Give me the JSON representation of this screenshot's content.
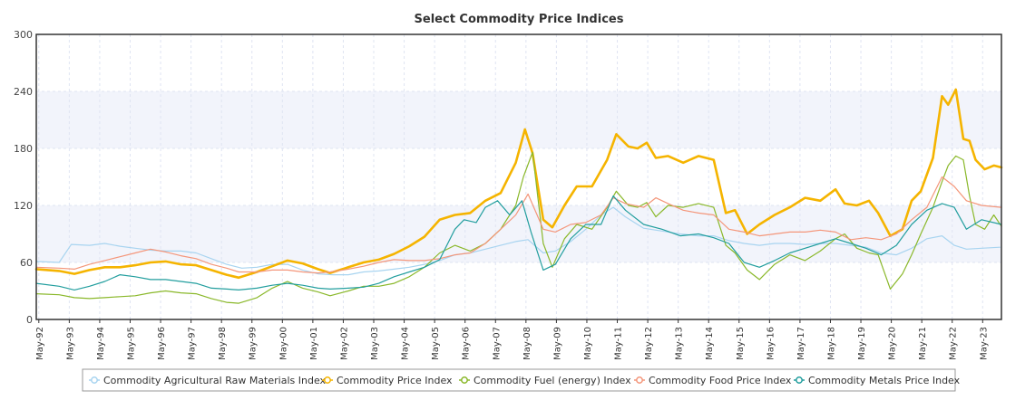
{
  "chart_data": {
    "type": "line",
    "title": "Select Commodity Price Indices",
    "ylim": [
      0,
      300
    ],
    "yticks": [
      "0",
      "60",
      "120",
      "180",
      "240",
      "300"
    ],
    "x_tick_labels": [
      "May-92",
      "May-93",
      "May-94",
      "May-95",
      "May-96",
      "May-97",
      "May-98",
      "May-99",
      "May-00",
      "May-01",
      "May-02",
      "May-03",
      "May-04",
      "May-05",
      "May-06",
      "May-07",
      "May-08",
      "May-09",
      "May-10",
      "May-11",
      "May-12",
      "May-13",
      "May-14",
      "May-15",
      "May-16",
      "May-17",
      "May-18",
      "May-19",
      "May-20",
      "May-21",
      "May-22",
      "May-23"
    ],
    "x_range": [
      1992.25,
      2023.95
    ],
    "grid": true,
    "bands": [
      [
        60,
        120
      ],
      [
        180,
        240
      ]
    ],
    "legend_position": "bottom",
    "series": [
      {
        "name": "Commodity Agricultural Raw Materials Index",
        "color": "#a8d4f0",
        "stroke_width": 1.2,
        "x": [
          1992.25,
          1993.0,
          1993.4,
          1994.0,
          1994.5,
          1995.0,
          1995.5,
          1996.0,
          1996.5,
          1997.0,
          1997.5,
          1998.0,
          1998.5,
          1999.0,
          1999.5,
          2000.0,
          2000.5,
          2001.0,
          2001.5,
          2002.0,
          2002.5,
          2003.0,
          2003.5,
          2004.0,
          2004.5,
          2005.0,
          2005.5,
          2006.0,
          2006.5,
          2007.0,
          2007.5,
          2008.0,
          2008.4,
          2008.9,
          2009.3,
          2009.8,
          2010.3,
          2010.8,
          2011.2,
          2011.6,
          2012.2,
          2012.8,
          2013.4,
          2014.0,
          2014.5,
          2015.0,
          2015.5,
          2016.0,
          2016.5,
          2017.0,
          2017.5,
          2018.0,
          2018.5,
          2019.0,
          2019.5,
          2020.0,
          2020.5,
          2021.0,
          2021.5,
          2022.0,
          2022.4,
          2022.8,
          2023.3,
          2023.9
        ],
        "values": [
          61,
          60,
          79,
          78,
          80,
          77,
          75,
          73,
          72,
          72,
          70,
          64,
          58,
          54,
          55,
          58,
          58,
          52,
          48,
          47,
          47,
          50,
          51,
          53,
          55,
          58,
          62,
          68,
          70,
          74,
          78,
          82,
          84,
          70,
          72,
          82,
          95,
          110,
          118,
          108,
          96,
          93,
          90,
          88,
          88,
          83,
          80,
          78,
          80,
          80,
          79,
          80,
          80,
          78,
          76,
          70,
          68,
          75,
          85,
          88,
          78,
          74,
          75,
          76
        ]
      },
      {
        "name": "Commodity Price Index",
        "color": "#f5b400",
        "stroke_width": 2.6,
        "x": [
          1992.25,
          1993.0,
          1993.5,
          1994.0,
          1994.5,
          1995.0,
          1995.5,
          1996.0,
          1996.5,
          1997.0,
          1997.5,
          1998.0,
          1998.5,
          1998.9,
          1999.5,
          2000.0,
          2000.5,
          2001.0,
          2001.5,
          2001.9,
          2002.5,
          2003.0,
          2003.5,
          2004.0,
          2004.5,
          2005.0,
          2005.5,
          2006.0,
          2006.5,
          2007.0,
          2007.5,
          2008.0,
          2008.3,
          2008.55,
          2008.9,
          2009.2,
          2009.6,
          2010.0,
          2010.5,
          2011.0,
          2011.3,
          2011.7,
          2012.0,
          2012.3,
          2012.6,
          2013.0,
          2013.5,
          2014.0,
          2014.5,
          2014.9,
          2015.2,
          2015.6,
          2016.0,
          2016.5,
          2017.0,
          2017.5,
          2018.0,
          2018.5,
          2018.8,
          2019.2,
          2019.6,
          2019.9,
          2020.3,
          2020.7,
          2021.0,
          2021.3,
          2021.7,
          2022.0,
          2022.2,
          2022.45,
          2022.7,
          2022.9,
          2023.1,
          2023.4,
          2023.7,
          2023.95
        ],
        "values": [
          53,
          51,
          48,
          52,
          55,
          55,
          57,
          60,
          61,
          58,
          57,
          52,
          47,
          44,
          50,
          56,
          62,
          59,
          53,
          49,
          55,
          60,
          63,
          69,
          77,
          87,
          105,
          110,
          112,
          125,
          133,
          165,
          200,
          175,
          105,
          97,
          120,
          140,
          140,
          168,
          195,
          182,
          180,
          186,
          170,
          172,
          165,
          172,
          168,
          112,
          115,
          90,
          100,
          110,
          118,
          128,
          125,
          137,
          122,
          120,
          125,
          112,
          88,
          95,
          125,
          135,
          170,
          235,
          226,
          242,
          190,
          188,
          168,
          158,
          162,
          160
        ]
      },
      {
        "name": "Commodity Fuel (energy) Index",
        "color": "#8ab82a",
        "stroke_width": 1.2,
        "x": [
          1992.25,
          1993.0,
          1993.5,
          1994.0,
          1994.5,
          1995.0,
          1995.5,
          1996.0,
          1996.5,
          1997.0,
          1997.5,
          1998.0,
          1998.5,
          1998.9,
          1999.5,
          2000.0,
          2000.5,
          2001.0,
          2001.5,
          2001.9,
          2002.5,
          2003.0,
          2003.5,
          2004.0,
          2004.5,
          2005.0,
          2005.5,
          2006.0,
          2006.5,
          2007.0,
          2007.5,
          2008.0,
          2008.25,
          2008.55,
          2008.9,
          2009.2,
          2009.6,
          2010.0,
          2010.5,
          2011.0,
          2011.3,
          2011.7,
          2012.0,
          2012.3,
          2012.6,
          2013.0,
          2013.5,
          2014.0,
          2014.5,
          2014.9,
          2015.2,
          2015.6,
          2016.0,
          2016.5,
          2017.0,
          2017.5,
          2018.0,
          2018.5,
          2018.8,
          2019.2,
          2019.6,
          2019.9,
          2020.3,
          2020.7,
          2021.0,
          2021.3,
          2021.7,
          2022.0,
          2022.2,
          2022.45,
          2022.7,
          2022.9,
          2023.1,
          2023.4,
          2023.7,
          2023.95
        ],
        "values": [
          27,
          26,
          23,
          22,
          23,
          24,
          25,
          28,
          30,
          28,
          27,
          22,
          18,
          17,
          23,
          33,
          40,
          33,
          29,
          25,
          30,
          35,
          35,
          38,
          45,
          55,
          70,
          78,
          72,
          80,
          95,
          120,
          150,
          176,
          80,
          55,
          85,
          100,
          95,
          118,
          135,
          120,
          118,
          123,
          108,
          120,
          118,
          122,
          118,
          78,
          70,
          52,
          42,
          58,
          68,
          62,
          72,
          85,
          90,
          75,
          70,
          68,
          32,
          48,
          68,
          90,
          118,
          145,
          162,
          172,
          168,
          130,
          100,
          95,
          110,
          98
        ]
      },
      {
        "name": "Commodity Food Price Index",
        "color": "#f4967a",
        "stroke_width": 1.2,
        "x": [
          1992.25,
          1993.0,
          1993.5,
          1994.0,
          1994.5,
          1995.0,
          1995.5,
          1996.0,
          1996.5,
          1997.0,
          1997.5,
          1998.0,
          1998.5,
          1998.9,
          1999.5,
          2000.0,
          2000.5,
          2001.0,
          2001.5,
          2001.9,
          2002.5,
          2003.0,
          2003.5,
          2004.0,
          2004.5,
          2005.0,
          2005.5,
          2006.0,
          2006.5,
          2007.0,
          2007.5,
          2008.0,
          2008.4,
          2008.9,
          2009.3,
          2009.8,
          2010.3,
          2010.8,
          2011.2,
          2011.6,
          2012.2,
          2012.6,
          2013.0,
          2013.5,
          2014.0,
          2014.5,
          2015.0,
          2015.5,
          2016.0,
          2016.5,
          2017.0,
          2017.5,
          2018.0,
          2018.5,
          2019.0,
          2019.5,
          2020.0,
          2020.5,
          2021.0,
          2021.5,
          2022.0,
          2022.4,
          2022.8,
          2023.3,
          2023.95
        ],
        "values": [
          55,
          54,
          53,
          58,
          62,
          66,
          70,
          74,
          71,
          67,
          64,
          58,
          54,
          50,
          50,
          52,
          52,
          50,
          49,
          50,
          53,
          56,
          60,
          63,
          62,
          62,
          64,
          68,
          70,
          80,
          95,
          110,
          132,
          95,
          92,
          100,
          102,
          110,
          128,
          122,
          118,
          128,
          122,
          115,
          112,
          110,
          95,
          92,
          88,
          90,
          92,
          92,
          94,
          92,
          84,
          86,
          84,
          90,
          105,
          118,
          150,
          140,
          125,
          120,
          118
        ]
      },
      {
        "name": "Commodity Metals Price Index",
        "color": "#229e9e",
        "stroke_width": 1.2,
        "x": [
          1992.25,
          1993.0,
          1993.5,
          1994.0,
          1994.5,
          1995.0,
          1995.5,
          1996.0,
          1996.5,
          1997.0,
          1997.5,
          1998.0,
          1998.5,
          1998.9,
          1999.5,
          2000.0,
          2000.5,
          2001.0,
          2001.5,
          2001.9,
          2002.5,
          2003.0,
          2003.5,
          2004.0,
          2004.5,
          2005.0,
          2005.5,
          2006.0,
          2006.3,
          2006.7,
          2007.0,
          2007.4,
          2007.8,
          2008.2,
          2008.5,
          2008.9,
          2009.3,
          2009.8,
          2010.3,
          2010.8,
          2011.2,
          2011.6,
          2012.2,
          2012.8,
          2013.4,
          2014.0,
          2014.5,
          2015.0,
          2015.5,
          2016.0,
          2016.5,
          2017.0,
          2017.5,
          2018.0,
          2018.5,
          2019.0,
          2019.5,
          2020.0,
          2020.5,
          2021.0,
          2021.5,
          2022.0,
          2022.4,
          2022.8,
          2023.3,
          2023.95
        ],
        "values": [
          38,
          35,
          31,
          35,
          40,
          47,
          45,
          42,
          42,
          40,
          38,
          33,
          32,
          31,
          33,
          36,
          38,
          36,
          33,
          32,
          33,
          34,
          38,
          45,
          50,
          55,
          63,
          95,
          105,
          102,
          118,
          125,
          110,
          125,
          92,
          52,
          58,
          85,
          100,
          100,
          130,
          115,
          100,
          95,
          88,
          90,
          86,
          80,
          60,
          55,
          62,
          70,
          75,
          80,
          85,
          80,
          75,
          68,
          78,
          100,
          115,
          122,
          118,
          95,
          105,
          100
        ]
      }
    ]
  }
}
